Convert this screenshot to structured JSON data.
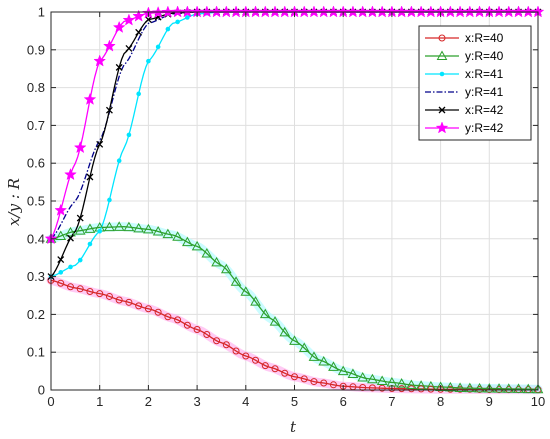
{
  "chart_data": {
    "type": "line",
    "title": "",
    "xlabel": "t",
    "ylabel": "x/y : R",
    "xlim": [
      0,
      10
    ],
    "ylim": [
      0,
      1
    ],
    "xticks": [
      "0",
      "1",
      "2",
      "3",
      "4",
      "5",
      "6",
      "7",
      "8",
      "9",
      "10"
    ],
    "yticks": [
      "0",
      "0.1",
      "0.2",
      "0.3",
      "0.4",
      "0.5",
      "0.6",
      "0.7",
      "0.8",
      "0.9",
      "1"
    ],
    "grid": true,
    "legend_position": "top-right",
    "series": [
      {
        "name": "x:R=40",
        "color": "#d62728",
        "marker": "circle",
        "line": "solid",
        "points": [
          [
            0,
            0.29
          ],
          [
            0.5,
            0.27
          ],
          [
            1,
            0.255
          ],
          [
            1.5,
            0.235
          ],
          [
            2,
            0.215
          ],
          [
            2.5,
            0.19
          ],
          [
            3,
            0.16
          ],
          [
            3.5,
            0.125
          ],
          [
            4,
            0.09
          ],
          [
            4.5,
            0.06
          ],
          [
            5,
            0.035
          ],
          [
            5.5,
            0.02
          ],
          [
            6,
            0.01
          ],
          [
            6.5,
            0.006
          ],
          [
            7,
            0.004
          ],
          [
            7.5,
            0.003
          ],
          [
            8,
            0.002
          ],
          [
            8.5,
            0.002
          ],
          [
            9,
            0.001
          ],
          [
            9.5,
            0.001
          ],
          [
            10,
            0.001
          ]
        ]
      },
      {
        "name": "y:R=40",
        "color": "#2ca02c",
        "marker": "triangle",
        "line": "solid",
        "points": [
          [
            0,
            0.4
          ],
          [
            0.5,
            0.42
          ],
          [
            1,
            0.43
          ],
          [
            1.5,
            0.432
          ],
          [
            2,
            0.425
          ],
          [
            2.5,
            0.41
          ],
          [
            3,
            0.38
          ],
          [
            3.5,
            0.33
          ],
          [
            4,
            0.26
          ],
          [
            4.5,
            0.19
          ],
          [
            5,
            0.13
          ],
          [
            5.5,
            0.08
          ],
          [
            6,
            0.05
          ],
          [
            6.5,
            0.03
          ],
          [
            7,
            0.02
          ],
          [
            7.5,
            0.012
          ],
          [
            8,
            0.008
          ],
          [
            8.5,
            0.005
          ],
          [
            9,
            0.004
          ],
          [
            9.5,
            0.003
          ],
          [
            10,
            0.002
          ]
        ]
      },
      {
        "name": "x:R=41",
        "color": "#00e5ff",
        "marker": "dot",
        "line": "solid",
        "points": [
          [
            0,
            0.3
          ],
          [
            0.5,
            0.33
          ],
          [
            1,
            0.42
          ],
          [
            1.5,
            0.64
          ],
          [
            2,
            0.87
          ],
          [
            2.5,
            0.97
          ],
          [
            3,
            0.995
          ],
          [
            3.5,
            1
          ],
          [
            4,
            1
          ],
          [
            5,
            1
          ],
          [
            6,
            1
          ],
          [
            7,
            1
          ],
          [
            8,
            1
          ],
          [
            9,
            1
          ],
          [
            10,
            1
          ]
        ]
      },
      {
        "name": "y:R=41",
        "color": "#00008b",
        "marker": "none",
        "line": "dashdot",
        "points": [
          [
            0,
            0.4
          ],
          [
            0.5,
            0.5
          ],
          [
            1,
            0.66
          ],
          [
            1.5,
            0.86
          ],
          [
            2,
            0.97
          ],
          [
            2.5,
            0.995
          ],
          [
            3,
            1
          ],
          [
            4,
            1
          ],
          [
            5,
            1
          ],
          [
            6,
            1
          ],
          [
            7,
            1
          ],
          [
            8,
            1
          ],
          [
            9,
            1
          ],
          [
            10,
            1
          ]
        ]
      },
      {
        "name": "x:R=42",
        "color": "#000000",
        "marker": "x",
        "line": "solid",
        "points": [
          [
            0,
            0.3
          ],
          [
            0.5,
            0.42
          ],
          [
            1,
            0.65
          ],
          [
            1.5,
            0.89
          ],
          [
            2,
            0.98
          ],
          [
            2.5,
            0.997
          ],
          [
            3,
            1
          ],
          [
            3.5,
            1
          ],
          [
            4,
            1
          ],
          [
            5,
            1
          ],
          [
            6,
            1
          ],
          [
            7,
            1
          ],
          [
            8,
            1
          ],
          [
            9,
            1
          ],
          [
            10,
            1
          ]
        ]
      },
      {
        "name": "y:R=42",
        "color": "#ff00ff",
        "marker": "star",
        "line": "solid",
        "points": [
          [
            0,
            0.4
          ],
          [
            0.5,
            0.6
          ],
          [
            1,
            0.87
          ],
          [
            1.5,
            0.975
          ],
          [
            2,
            0.997
          ],
          [
            2.5,
            1
          ],
          [
            3,
            1
          ],
          [
            3.5,
            1
          ],
          [
            4,
            1
          ],
          [
            5,
            1
          ],
          [
            6,
            1
          ],
          [
            7,
            1
          ],
          [
            8,
            1
          ],
          [
            9,
            1
          ],
          [
            10,
            1
          ]
        ]
      }
    ]
  }
}
